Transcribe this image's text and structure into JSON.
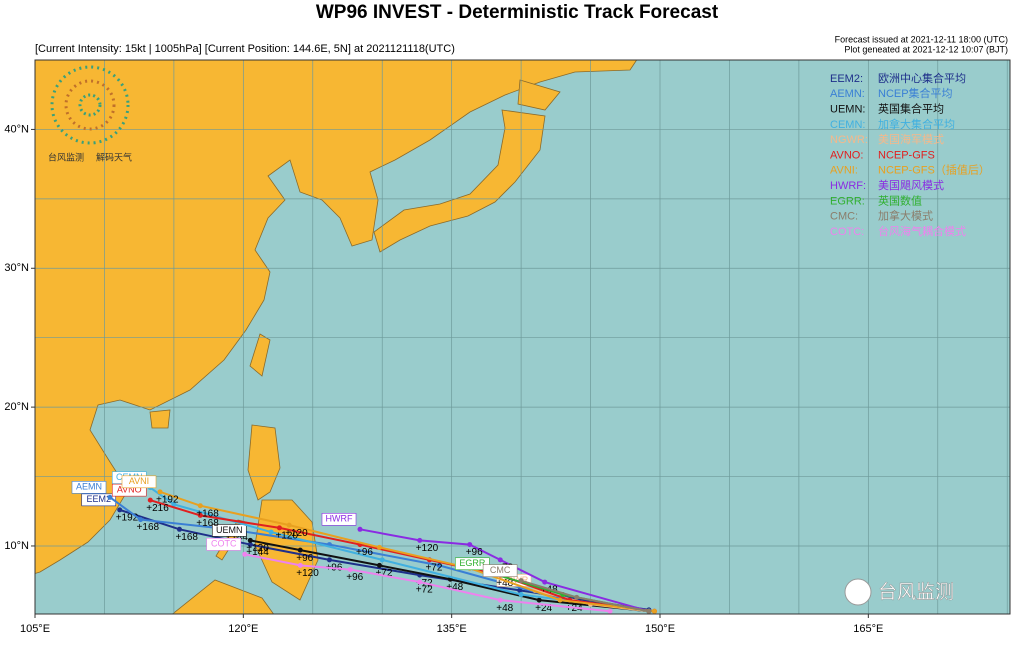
{
  "title": "WP96 INVEST - Deterministic Track Forecast",
  "subtitle": "[Current Intensity: 15kt | 1005hPa]  [Current Position: 144.6E, 5N] at 2021121118(UTC)",
  "issued": "Forecast issued at 2021-12-11 18:00 (UTC)",
  "plotted": "Plot geneated at 2021-12-12 10:07 (BJT)",
  "logo": {
    "left": "台风监测",
    "right": "解码天气"
  },
  "watermark": "台风监测",
  "map": {
    "xlim": [
      105,
      175.2
    ],
    "ylim": [
      5.1,
      45
    ],
    "xticks": [
      {
        "value": 105,
        "label": "105°E"
      },
      {
        "value": 120,
        "label": "120°E"
      },
      {
        "value": 135,
        "label": "135°E"
      },
      {
        "value": 150,
        "label": "150°E"
      },
      {
        "value": 165,
        "label": "165°E"
      }
    ],
    "yticks": [
      {
        "value": 10,
        "label": "10°N"
      },
      {
        "value": 20,
        "label": "20°N"
      },
      {
        "value": 30,
        "label": "30°N"
      },
      {
        "value": 40,
        "label": "40°N"
      }
    ],
    "xgrid": [
      105,
      110,
      115,
      120,
      125,
      130,
      135,
      140,
      145,
      150,
      155,
      160,
      165,
      170,
      175
    ],
    "ygrid": [
      5,
      10,
      15,
      20,
      25,
      30,
      35,
      40,
      45
    ]
  },
  "tracks": [
    {
      "name": "EEM2",
      "legend": "EEM2:",
      "desc": "欧洲中心集合平均",
      "color": "#1e2f8a",
      "lon": [
        149.2,
        139.9,
        132.7,
        126.2,
        120.5,
        115.4,
        111.1
      ],
      "lat": [
        5.4,
        6.8,
        7.9,
        9.0,
        10.1,
        11.2,
        12.6
      ],
      "labels": [
        null,
        null,
        "+72",
        "+96",
        "+144",
        "+168",
        "+192"
      ]
    },
    {
      "name": "AEMN",
      "legend": "AEMN:",
      "desc": "NCEP集合平均",
      "color": "#3a7fd5",
      "lon": [
        149.2,
        142.8,
        134.1,
        126.2,
        119.0,
        112.6,
        110.4
      ],
      "lat": [
        5.3,
        6.2,
        8.6,
        10.1,
        11.2,
        11.9,
        13.5
      ],
      "labels": [
        null,
        null,
        null,
        null,
        "+144",
        "+168",
        null
      ]
    },
    {
      "name": "UEMN",
      "legend": "UEMN:",
      "desc": "英国集合平均",
      "color": "#111111",
      "lon": [
        149.2,
        141.3,
        134.9,
        129.8,
        124.1,
        120.5
      ],
      "lat": [
        5.3,
        6.1,
        7.6,
        8.6,
        9.7,
        10.4
      ],
      "labels": [
        null,
        "+24",
        "+48",
        "+72",
        "+96",
        "+120"
      ]
    },
    {
      "name": "CEMN",
      "legend": "CEMN:",
      "desc": "加拿大集合平均",
      "color": "#40b0e0",
      "lon": [
        149.2,
        140.0,
        130.0,
        122.0,
        115.0,
        113.3
      ],
      "lat": [
        5.3,
        6.5,
        9.0,
        11.0,
        13.0,
        14.2
      ],
      "labels": [
        null,
        null,
        null,
        null,
        null,
        null
      ]
    },
    {
      "name": "NGWR",
      "legend": "NGWR:",
      "desc": "美国海军模式",
      "color": "#f5b88a",
      "lon": [
        149.2,
        145.0,
        141.0
      ],
      "lat": [
        5.3,
        5.8,
        6.8
      ],
      "labels": [
        null,
        null,
        null
      ]
    },
    {
      "name": "AVNO",
      "legend": "AVNO:",
      "desc": "NCEP-GFS",
      "color": "#e02020",
      "lon": [
        149.6,
        143.5,
        138.5,
        133.4,
        128.4,
        122.6,
        116.9,
        113.3
      ],
      "lat": [
        5.3,
        6.1,
        7.9,
        9.0,
        10.1,
        11.3,
        12.2,
        13.3
      ],
      "labels": [
        null,
        "+24",
        "+48",
        "+72",
        "+96",
        "+120",
        "+168",
        "+216"
      ]
    },
    {
      "name": "AVNI",
      "legend": "AVNI:",
      "desc": "NCEP-GFS（插值后）",
      "color": "#e8a020",
      "lon": [
        149.6,
        142.8,
        136.3,
        129.8,
        123.3,
        116.9,
        114.0
      ],
      "lat": [
        5.3,
        6.1,
        8.4,
        9.9,
        11.5,
        12.9,
        13.9
      ],
      "labels": [
        null,
        null,
        null,
        null,
        "+120",
        "+168",
        "+192"
      ]
    },
    {
      "name": "HWRF",
      "legend": "HWRF:",
      "desc": "美国飓风模式",
      "color": "#8a2be2",
      "lon": [
        149.2,
        141.7,
        138.5,
        136.3,
        132.7,
        128.4
      ],
      "lat": [
        5.3,
        7.4,
        9.0,
        10.1,
        10.4,
        11.2
      ],
      "labels": [
        null,
        "+48",
        "+72",
        "+96",
        "+120",
        null
      ]
    },
    {
      "name": "EGRR",
      "legend": "EGRR:",
      "desc": "英国数值",
      "color": "#30b030",
      "lon": [
        149.2,
        143.0,
        138.0
      ],
      "lat": [
        5.3,
        6.5,
        8.0
      ],
      "labels": [
        null,
        null,
        null
      ]
    },
    {
      "name": "CMC",
      "legend": "CMC:",
      "desc": "加拿大模式",
      "color": "#8b7d6b",
      "lon": [
        149.2,
        144.0,
        140.0
      ],
      "lat": [
        5.3,
        6.3,
        7.5
      ],
      "labels": [
        null,
        null,
        null
      ]
    },
    {
      "name": "COTC",
      "legend": "COTC:",
      "desc": "台风海气耦合模式",
      "color": "#ee82ee",
      "lon": [
        146.4,
        138.5,
        132.7,
        127.7,
        124.1,
        120.1
      ],
      "lat": [
        5.3,
        6.1,
        7.4,
        8.3,
        8.6,
        9.4
      ],
      "labels": [
        null,
        "+48",
        "+72",
        "+96",
        "+120",
        null
      ]
    }
  ]
}
